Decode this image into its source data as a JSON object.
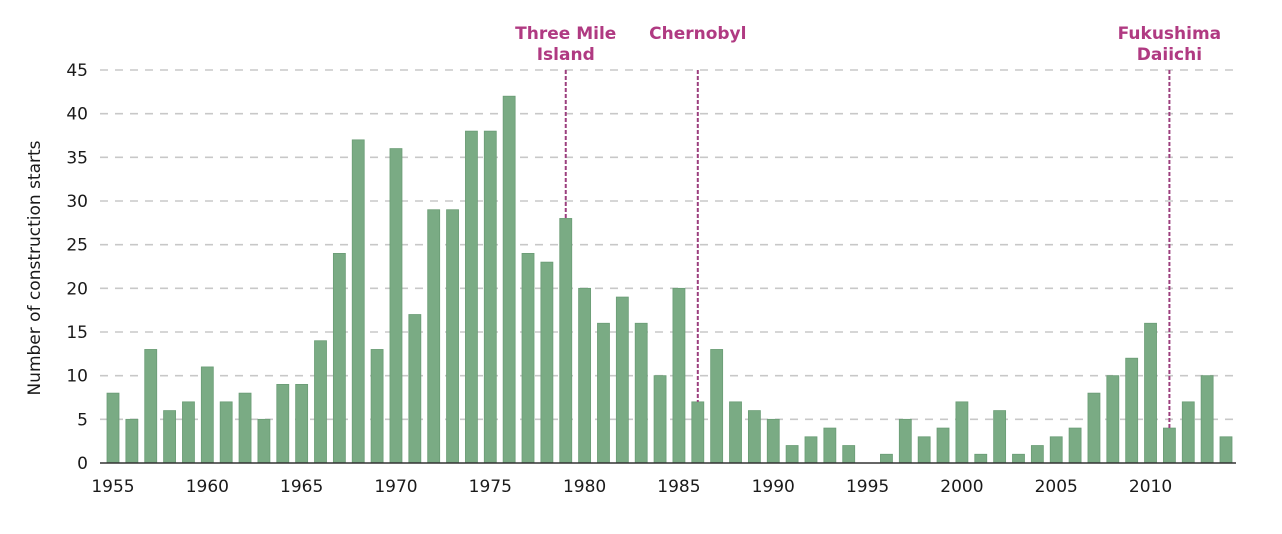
{
  "chart_data": {
    "type": "bar",
    "title": "",
    "xlabel": "",
    "ylabel": "Number of construction starts",
    "ylim": [
      0,
      45
    ],
    "yticks": [
      0,
      5,
      10,
      15,
      20,
      25,
      30,
      35,
      40,
      45
    ],
    "ytick_labels": [
      "0",
      "5",
      "10",
      "15",
      "20",
      "25",
      "30",
      "35",
      "40",
      "45"
    ],
    "xticks": [
      1955,
      1960,
      1965,
      1970,
      1975,
      1980,
      1985,
      1990,
      1995,
      2000,
      2005,
      2010
    ],
    "xtick_labels": [
      "1955",
      "1960",
      "1965",
      "1970",
      "1975",
      "1980",
      "1985",
      "1990",
      "1995",
      "2000",
      "2005",
      "2010"
    ],
    "grid": "horizontal-dashed",
    "bar_color": "#7aab84",
    "annotation_color": "#b03a82",
    "categories": [
      1955,
      1956,
      1957,
      1958,
      1959,
      1960,
      1961,
      1962,
      1963,
      1964,
      1965,
      1966,
      1967,
      1968,
      1969,
      1970,
      1971,
      1972,
      1973,
      1974,
      1975,
      1976,
      1977,
      1978,
      1979,
      1980,
      1981,
      1982,
      1983,
      1984,
      1985,
      1986,
      1987,
      1988,
      1989,
      1990,
      1991,
      1992,
      1993,
      1994,
      1995,
      1996,
      1997,
      1998,
      1999,
      2000,
      2001,
      2002,
      2003,
      2004,
      2005,
      2006,
      2007,
      2008,
      2009,
      2010,
      2011,
      2012,
      2013,
      2014
    ],
    "values": [
      8,
      5,
      13,
      6,
      7,
      11,
      7,
      8,
      5,
      9,
      9,
      14,
      24,
      37,
      13,
      36,
      17,
      29,
      29,
      38,
      38,
      42,
      24,
      23,
      28,
      20,
      16,
      19,
      16,
      10,
      20,
      7,
      13,
      7,
      6,
      5,
      2,
      3,
      4,
      2,
      0,
      1,
      5,
      3,
      4,
      7,
      1,
      6,
      1,
      2,
      3,
      4,
      8,
      10,
      12,
      16,
      4,
      7,
      10,
      3
    ],
    "annotations": [
      {
        "year": 1979,
        "lines": [
          "Three Mile",
          "Island"
        ]
      },
      {
        "year": 1986,
        "lines": [
          "Chernobyl"
        ]
      },
      {
        "year": 2011,
        "lines": [
          "Fukushima",
          "Daiichi"
        ]
      }
    ]
  }
}
